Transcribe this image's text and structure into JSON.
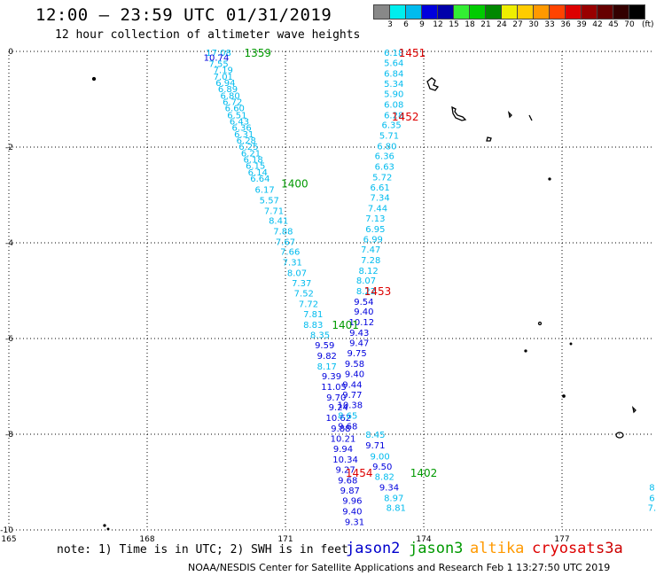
{
  "title": "12:00 – 23:59 UTC 01/31/2019",
  "subtitle": "12 hour collection of altimeter wave heights",
  "note": "note:  1) Time is in UTC;  2) SWH is in feet",
  "credit": "NOAA/NESDIS Center for Satellite Applications and Research   Feb  1 13:27:50 UTC 2019",
  "legend": [
    {
      "name": "jason2",
      "color": "#0000cc"
    },
    {
      "name": "jason3",
      "color": "#009900"
    },
    {
      "name": "altika",
      "color": "#ff9900"
    },
    {
      "name": "cryosat",
      "color": "#dd0000"
    },
    {
      "name": "s3a",
      "color": "#cc0000"
    }
  ],
  "color_scale": {
    "unit": "(ft)",
    "labels": [
      "3",
      "6",
      "9",
      "12",
      "15",
      "18",
      "21",
      "24",
      "27",
      "30",
      "33",
      "36",
      "39",
      "42",
      "45",
      "70"
    ],
    "colors": [
      "#888888",
      "#00eeee",
      "#00bbee",
      "#0000dd",
      "#0000aa",
      "#33ee33",
      "#00cc00",
      "#008800",
      "#eeee00",
      "#ffcc00",
      "#ff9900",
      "#ff4400",
      "#dd0000",
      "#990000",
      "#660000",
      "#330000",
      "#000000"
    ]
  },
  "chart_data": {
    "type": "scatter",
    "title": "12:00 – 23:59 UTC 01/31/2019",
    "subtitle": "12 hour collection of altimeter wave heights",
    "xlabel": "",
    "ylabel": "",
    "xlim": [
      165,
      179
    ],
    "ylim": [
      -10,
      0
    ],
    "x_ticks": [
      165,
      168,
      171,
      174,
      177
    ],
    "x_tick_labels": [
      "165",
      "168",
      "171",
      "174",
      "177"
    ],
    "y_ticks": [
      0,
      -2,
      -4,
      -6,
      -8,
      -10
    ],
    "y_tick_labels": [
      "0",
      "-2",
      "-4",
      "-6",
      "-8",
      "-10"
    ],
    "grid": true,
    "time_labels": [
      {
        "text": "1359",
        "color": "#009900",
        "lon": 170.4,
        "lat": -0.02
      },
      {
        "text": "1400",
        "color": "#009900",
        "lon": 171.2,
        "lat": -2.75
      },
      {
        "text": "1401",
        "color": "#009900",
        "lon": 172.3,
        "lat": -5.7
      },
      {
        "text": "1402",
        "color": "#009900",
        "lon": 174.0,
        "lat": -8.8
      },
      {
        "text": "1451",
        "color": "#dd0000",
        "lon": 173.75,
        "lat": -0.02
      },
      {
        "text": "1452",
        "color": "#dd0000",
        "lon": 173.6,
        "lat": -1.35
      },
      {
        "text": "1453",
        "color": "#dd0000",
        "lon": 173.0,
        "lat": -5.0
      },
      {
        "text": "1454",
        "color": "#dd0000",
        "lon": 172.6,
        "lat": -8.8
      }
    ],
    "tracks": [
      {
        "points": [
          [
            169.55,
            -0.02,
            "17.08",
            "#00bbee"
          ],
          [
            169.5,
            -0.12,
            "10.74",
            "#0000dd"
          ],
          [
            169.55,
            -0.25,
            "7.55",
            "#00bbee"
          ],
          [
            169.65,
            -0.38,
            "7.19",
            "#00bbee"
          ],
          [
            169.65,
            -0.52,
            "7.01",
            "#00bbee"
          ],
          [
            169.7,
            -0.65,
            "6.94",
            "#00bbee"
          ],
          [
            169.75,
            -0.78,
            "6.89",
            "#00bbee"
          ],
          [
            169.8,
            -0.92,
            "6.80",
            "#00bbee"
          ],
          [
            169.85,
            -1.05,
            "6.72",
            "#00bbee"
          ],
          [
            169.9,
            -1.18,
            "6.60",
            "#00bbee"
          ],
          [
            169.95,
            -1.32,
            "6.51",
            "#00bbee"
          ],
          [
            170.0,
            -1.45,
            "6.43",
            "#00bbee"
          ],
          [
            170.05,
            -1.58,
            "6.36",
            "#00bbee"
          ],
          [
            170.1,
            -1.72,
            "6.31",
            "#00bbee"
          ],
          [
            170.15,
            -1.85,
            "6.28",
            "#00bbee"
          ],
          [
            170.2,
            -1.98,
            "6.25",
            "#00bbee"
          ],
          [
            170.25,
            -2.12,
            "6.21",
            "#00bbee"
          ],
          [
            170.3,
            -2.25,
            "6.18",
            "#00bbee"
          ],
          [
            170.35,
            -2.38,
            "6.15",
            "#00bbee"
          ],
          [
            170.4,
            -2.52,
            "6.14",
            "#00bbee"
          ],
          [
            170.45,
            -2.65,
            "6.64",
            "#00bbee"
          ],
          [
            170.55,
            -2.88,
            "6.17",
            "#00bbee"
          ],
          [
            170.65,
            -3.1,
            "5.57",
            "#00bbee"
          ],
          [
            170.75,
            -3.32,
            "7.71",
            "#00bbee"
          ],
          [
            170.85,
            -3.53,
            "8.41",
            "#00bbee"
          ],
          [
            170.95,
            -3.75,
            "7.88",
            "#00bbee"
          ],
          [
            171.0,
            -3.97,
            "7.67",
            "#00bbee"
          ],
          [
            171.1,
            -4.18,
            "7.66",
            "#00bbee"
          ],
          [
            171.15,
            -4.4,
            "7.31",
            "#00bbee"
          ],
          [
            171.25,
            -4.62,
            "8.07",
            "#00bbee"
          ],
          [
            171.35,
            -4.83,
            "7.37",
            "#00bbee"
          ],
          [
            171.4,
            -5.05,
            "7.52",
            "#00bbee"
          ],
          [
            171.5,
            -5.27,
            "7.72",
            "#00bbee"
          ],
          [
            171.6,
            -5.48,
            "7.81",
            "#00bbee"
          ],
          [
            171.6,
            -5.7,
            "8.83",
            "#00bbee"
          ],
          [
            171.75,
            -5.92,
            "8.35",
            "#00bbee"
          ],
          [
            171.85,
            -6.13,
            "9.59",
            "#0000dd"
          ],
          [
            171.9,
            -6.35,
            "9.82",
            "#0000dd"
          ],
          [
            171.9,
            -6.57,
            "8.17",
            "#00bbee"
          ],
          [
            172.0,
            -6.78,
            "9.39",
            "#0000dd"
          ],
          [
            172.05,
            -7.0,
            "11.05",
            "#0000dd"
          ],
          [
            172.1,
            -7.22,
            "9.70",
            "#0000dd"
          ],
          [
            172.15,
            -7.43,
            "9.24",
            "#0000dd"
          ],
          [
            172.15,
            -7.65,
            "10.62",
            "#0000dd"
          ],
          [
            172.2,
            -7.87,
            "9.88",
            "#0000dd"
          ],
          [
            172.25,
            -8.08,
            "10.21",
            "#0000dd"
          ],
          [
            172.25,
            -8.3,
            "9.94",
            "#0000dd"
          ],
          [
            172.3,
            -8.52,
            "10.34",
            "#0000dd"
          ],
          [
            172.3,
            -8.73,
            "9.27",
            "#0000dd"
          ],
          [
            172.35,
            -8.95,
            "9.68",
            "#0000dd"
          ],
          [
            172.4,
            -9.17,
            "9.87",
            "#0000dd"
          ],
          [
            172.45,
            -9.38,
            "9.96",
            "#0000dd"
          ],
          [
            172.45,
            -9.6,
            "9.40",
            "#0000dd"
          ],
          [
            172.5,
            -9.82,
            "9.31",
            "#0000dd"
          ]
        ]
      },
      {
        "points": [
          [
            173.35,
            -0.02,
            "6.18",
            "#00bbee"
          ],
          [
            173.35,
            -0.23,
            "5.64",
            "#00bbee"
          ],
          [
            173.35,
            -0.45,
            "6.84",
            "#00bbee"
          ],
          [
            173.35,
            -0.67,
            "5.34",
            "#00bbee"
          ],
          [
            173.35,
            -0.88,
            "5.90",
            "#00bbee"
          ],
          [
            173.35,
            -1.1,
            "6.08",
            "#00bbee"
          ],
          [
            173.35,
            -1.32,
            "6.28",
            "#00bbee"
          ],
          [
            173.3,
            -1.53,
            "6.35",
            "#00bbee"
          ],
          [
            173.25,
            -1.75,
            "5.71",
            "#00bbee"
          ],
          [
            173.2,
            -1.97,
            "6.80",
            "#00bbee"
          ],
          [
            173.15,
            -2.18,
            "6.36",
            "#00bbee"
          ],
          [
            173.15,
            -2.4,
            "6.63",
            "#00bbee"
          ],
          [
            173.1,
            -2.62,
            "5.72",
            "#00bbee"
          ],
          [
            173.05,
            -2.83,
            "6.61",
            "#00bbee"
          ],
          [
            173.05,
            -3.05,
            "7.34",
            "#00bbee"
          ],
          [
            173.0,
            -3.27,
            "7.44",
            "#00bbee"
          ],
          [
            172.95,
            -3.48,
            "7.13",
            "#00bbee"
          ],
          [
            172.95,
            -3.7,
            "6.95",
            "#00bbee"
          ],
          [
            172.9,
            -3.92,
            "6.99",
            "#00bbee"
          ],
          [
            172.85,
            -4.13,
            "7.47",
            "#00bbee"
          ],
          [
            172.85,
            -4.35,
            "7.28",
            "#00bbee"
          ],
          [
            172.8,
            -4.57,
            "8.12",
            "#00bbee"
          ],
          [
            172.75,
            -4.78,
            "8.07",
            "#00bbee"
          ],
          [
            172.75,
            -5.0,
            "8.22",
            "#00bbee"
          ],
          [
            172.7,
            -5.22,
            "9.54",
            "#0000dd"
          ],
          [
            172.7,
            -5.43,
            "9.40",
            "#0000dd"
          ],
          [
            172.65,
            -5.65,
            "10.12",
            "#0000dd"
          ],
          [
            172.6,
            -5.87,
            "9.43",
            "#0000dd"
          ],
          [
            172.6,
            -6.08,
            "9.47",
            "#0000dd"
          ],
          [
            172.55,
            -6.3,
            "9.75",
            "#0000dd"
          ],
          [
            172.5,
            -6.52,
            "9.58",
            "#0000dd"
          ],
          [
            172.5,
            -6.73,
            "9.40",
            "#0000dd"
          ],
          [
            172.45,
            -6.95,
            "9.44",
            "#0000dd"
          ],
          [
            172.45,
            -7.17,
            "9.77",
            "#0000dd"
          ],
          [
            172.4,
            -7.38,
            "10.38",
            "#0000dd"
          ],
          [
            172.35,
            -7.6,
            "8.65",
            "#00bbee"
          ],
          [
            172.35,
            -7.82,
            "9.68",
            "#0000dd"
          ],
          [
            172.95,
            -8.0,
            "8.45",
            "#00bbee"
          ],
          [
            172.95,
            -8.22,
            "9.71",
            "#0000dd"
          ],
          [
            173.05,
            -8.45,
            "9.00",
            "#00bbee"
          ],
          [
            173.1,
            -8.67,
            "9.50",
            "#0000dd"
          ],
          [
            173.15,
            -8.88,
            "8.82",
            "#00bbee"
          ],
          [
            173.25,
            -9.1,
            "9.34",
            "#0000dd"
          ],
          [
            173.35,
            -9.32,
            "8.97",
            "#00bbee"
          ],
          [
            173.4,
            -9.53,
            "8.81",
            "#00bbee"
          ]
        ]
      },
      {
        "points": [
          [
            178.95,
            -9.1,
            "8",
            "#00bbee"
          ],
          [
            178.95,
            -9.32,
            "6",
            "#00bbee"
          ],
          [
            178.95,
            -9.53,
            "7.",
            "#00bbee"
          ]
        ]
      }
    ]
  }
}
